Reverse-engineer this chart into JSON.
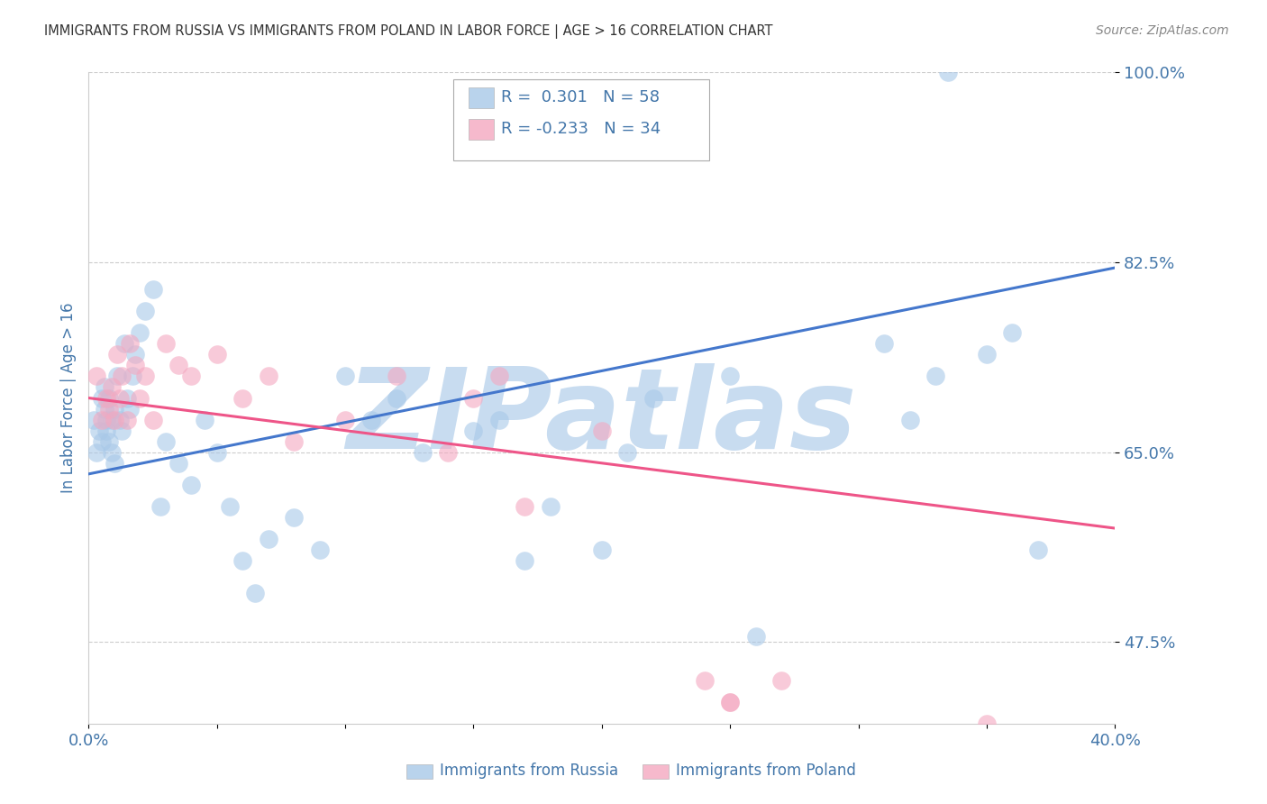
{
  "title": "IMMIGRANTS FROM RUSSIA VS IMMIGRANTS FROM POLAND IN LABOR FORCE | AGE > 16 CORRELATION CHART",
  "source": "Source: ZipAtlas.com",
  "ylabel": "In Labor Force | Age > 16",
  "xlim": [
    0.0,
    0.4
  ],
  "ylim": [
    0.4,
    1.0
  ],
  "ytick_vals": [
    0.475,
    0.65,
    0.825,
    1.0
  ],
  "ytick_labels": [
    "47.5%",
    "65.0%",
    "82.5%",
    "100.0%"
  ],
  "xtick_vals": [
    0.0,
    0.05,
    0.1,
    0.15,
    0.2,
    0.25,
    0.3,
    0.35,
    0.4
  ],
  "xtick_labels": [
    "0.0%",
    "",
    "",
    "",
    "",
    "",
    "",
    "",
    "40.0%"
  ],
  "legend_russia": "Immigrants from Russia",
  "legend_poland": "Immigrants from Poland",
  "R_russia": "0.301",
  "N_russia": "58",
  "R_poland": "-0.233",
  "N_poland": "34",
  "russia_scatter_color": "#A8C8E8",
  "poland_scatter_color": "#F4A8C0",
  "russia_line_color": "#4477CC",
  "poland_line_color": "#EE5588",
  "russia_trend_y0": 0.63,
  "russia_trend_y1": 0.82,
  "poland_trend_y0": 0.7,
  "poland_trend_y1": 0.58,
  "watermark": "ZIPatlas",
  "watermark_color": "#C8DCF0",
  "background_color": "#FFFFFF",
  "grid_color": "#CCCCCC",
  "title_color": "#333333",
  "axis_color": "#4477AA",
  "source_color": "#888888",
  "russia_x": [
    0.002,
    0.003,
    0.004,
    0.005,
    0.005,
    0.006,
    0.006,
    0.007,
    0.007,
    0.008,
    0.008,
    0.009,
    0.009,
    0.01,
    0.01,
    0.011,
    0.012,
    0.013,
    0.014,
    0.015,
    0.016,
    0.017,
    0.018,
    0.02,
    0.022,
    0.025,
    0.028,
    0.03,
    0.035,
    0.04,
    0.045,
    0.05,
    0.055,
    0.06,
    0.065,
    0.07,
    0.08,
    0.09,
    0.1,
    0.11,
    0.12,
    0.13,
    0.15,
    0.16,
    0.17,
    0.18,
    0.2,
    0.21,
    0.22,
    0.25,
    0.26,
    0.31,
    0.32,
    0.33,
    0.35,
    0.36,
    0.37,
    0.335
  ],
  "russia_y": [
    0.68,
    0.65,
    0.67,
    0.7,
    0.66,
    0.69,
    0.71,
    0.68,
    0.67,
    0.66,
    0.7,
    0.65,
    0.68,
    0.69,
    0.64,
    0.72,
    0.68,
    0.67,
    0.75,
    0.7,
    0.69,
    0.72,
    0.74,
    0.76,
    0.78,
    0.8,
    0.6,
    0.66,
    0.64,
    0.62,
    0.68,
    0.65,
    0.6,
    0.55,
    0.52,
    0.57,
    0.59,
    0.56,
    0.72,
    0.68,
    0.7,
    0.65,
    0.67,
    0.68,
    0.55,
    0.6,
    0.56,
    0.65,
    0.7,
    0.72,
    0.48,
    0.75,
    0.68,
    0.72,
    0.74,
    0.76,
    0.56,
    1.0
  ],
  "poland_x": [
    0.003,
    0.005,
    0.007,
    0.008,
    0.009,
    0.01,
    0.011,
    0.012,
    0.013,
    0.015,
    0.016,
    0.018,
    0.02,
    0.022,
    0.025,
    0.03,
    0.035,
    0.04,
    0.05,
    0.06,
    0.07,
    0.08,
    0.1,
    0.12,
    0.14,
    0.15,
    0.16,
    0.17,
    0.2,
    0.24,
    0.25,
    0.25,
    0.27,
    0.35
  ],
  "poland_y": [
    0.72,
    0.68,
    0.7,
    0.69,
    0.71,
    0.68,
    0.74,
    0.7,
    0.72,
    0.68,
    0.75,
    0.73,
    0.7,
    0.72,
    0.68,
    0.75,
    0.73,
    0.72,
    0.74,
    0.7,
    0.72,
    0.66,
    0.68,
    0.72,
    0.65,
    0.7,
    0.72,
    0.6,
    0.67,
    0.44,
    0.42,
    0.42,
    0.44,
    0.4
  ]
}
